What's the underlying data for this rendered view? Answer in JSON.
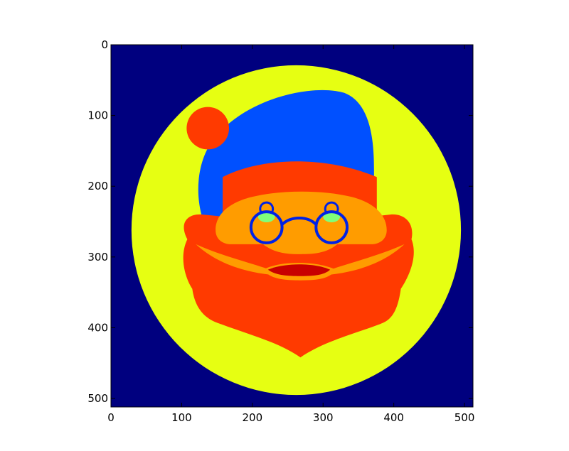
{
  "chart_data": {
    "type": "heatmap",
    "title": "",
    "xlabel": "",
    "ylabel": "",
    "colormap": "jet",
    "image_size": [
      512,
      512
    ],
    "xlim": [
      0,
      512
    ],
    "ylim": [
      512,
      0
    ],
    "x_ticks": [
      0,
      100,
      200,
      300,
      400,
      500
    ],
    "y_ticks": [
      0,
      100,
      200,
      300,
      400,
      500
    ],
    "x_tick_labels": [
      "0",
      "100",
      "200",
      "300",
      "400",
      "500"
    ],
    "y_tick_labels": [
      "0",
      "100",
      "200",
      "300",
      "400",
      "500"
    ],
    "grid": false,
    "colors": {
      "background": "#00007f",
      "plate": "#e6ff12",
      "hat": "#0050ff",
      "red": "#ff3a00",
      "orange": "#ff9c00",
      "mouth": "#c80000",
      "glasses": "#0022e6",
      "glass_highlight": "#7fff7a"
    }
  }
}
